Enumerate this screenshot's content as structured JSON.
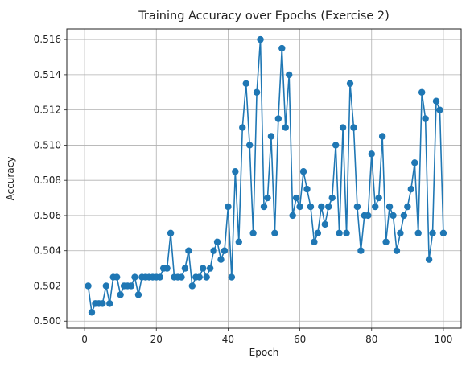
{
  "chart_data": {
    "type": "line",
    "title": "Training Accuracy over Epochs (Exercise 2)",
    "xlabel": "Epoch",
    "ylabel": "Accuracy",
    "xlim": [
      -4.95,
      104.95
    ],
    "ylim": [
      0.4996,
      0.5166
    ],
    "xticks": [
      0,
      20,
      40,
      60,
      80,
      100
    ],
    "xtick_labels": [
      "0",
      "20",
      "40",
      "60",
      "80",
      "100"
    ],
    "yticks": [
      0.5,
      0.502,
      0.504,
      0.506,
      0.508,
      0.51,
      0.512,
      0.514,
      0.516
    ],
    "ytick_labels": [
      "0.500",
      "0.502",
      "0.504",
      "0.506",
      "0.508",
      "0.510",
      "0.512",
      "0.514",
      "0.516"
    ],
    "grid": true,
    "color": "#1f77b4",
    "marker": "circle",
    "series": [
      {
        "x": [
          1,
          2,
          3,
          4,
          5,
          6,
          7,
          8,
          9,
          10,
          11,
          12,
          13,
          14,
          15,
          16,
          17,
          18,
          19,
          20,
          21,
          22,
          23,
          24,
          25,
          26,
          27,
          28,
          29,
          30,
          31,
          32,
          33,
          34,
          35,
          36,
          37,
          38,
          39,
          40,
          41,
          42,
          43,
          44,
          45,
          46,
          47,
          48,
          49,
          50,
          51,
          52,
          53,
          54,
          55,
          56,
          57,
          58,
          59,
          60,
          61,
          62,
          63,
          64,
          65,
          66,
          67,
          68,
          69,
          70,
          71,
          72,
          73,
          74,
          75,
          76,
          77,
          78,
          79,
          80,
          81,
          82,
          83,
          84,
          85,
          86,
          87,
          88,
          89,
          90,
          91,
          92,
          93,
          94,
          95,
          96,
          97,
          98,
          99,
          100
        ],
        "values": [
          0.502,
          0.5005,
          0.501,
          0.501,
          0.501,
          0.502,
          0.501,
          0.5025,
          0.5025,
          0.5015,
          0.502,
          0.502,
          0.502,
          0.5025,
          0.5015,
          0.5025,
          0.5025,
          0.5025,
          0.5025,
          0.5025,
          0.5025,
          0.503,
          0.503,
          0.505,
          0.5025,
          0.5025,
          0.5025,
          0.503,
          0.504,
          0.502,
          0.5025,
          0.5025,
          0.503,
          0.5025,
          0.503,
          0.504,
          0.5045,
          0.5035,
          0.504,
          0.5065,
          0.5025,
          0.5085,
          0.5045,
          0.511,
          0.5135,
          0.51,
          0.505,
          0.513,
          0.516,
          0.5065,
          0.507,
          0.5105,
          0.505,
          0.5115,
          0.5155,
          0.511,
          0.514,
          0.506,
          0.507,
          0.5065,
          0.5085,
          0.5075,
          0.5065,
          0.5045,
          0.505,
          0.5065,
          0.5055,
          0.5065,
          0.507,
          0.51,
          0.505,
          0.511,
          0.505,
          0.5135,
          0.511,
          0.5065,
          0.504,
          0.506,
          0.506,
          0.5095,
          0.5065,
          0.507,
          0.5105,
          0.5045,
          0.5065,
          0.506,
          0.504,
          0.505,
          0.506,
          0.5065,
          0.5075,
          0.509,
          0.505,
          0.513,
          0.5115,
          0.5035,
          0.505,
          0.5125,
          0.512,
          0.505
        ]
      }
    ]
  }
}
